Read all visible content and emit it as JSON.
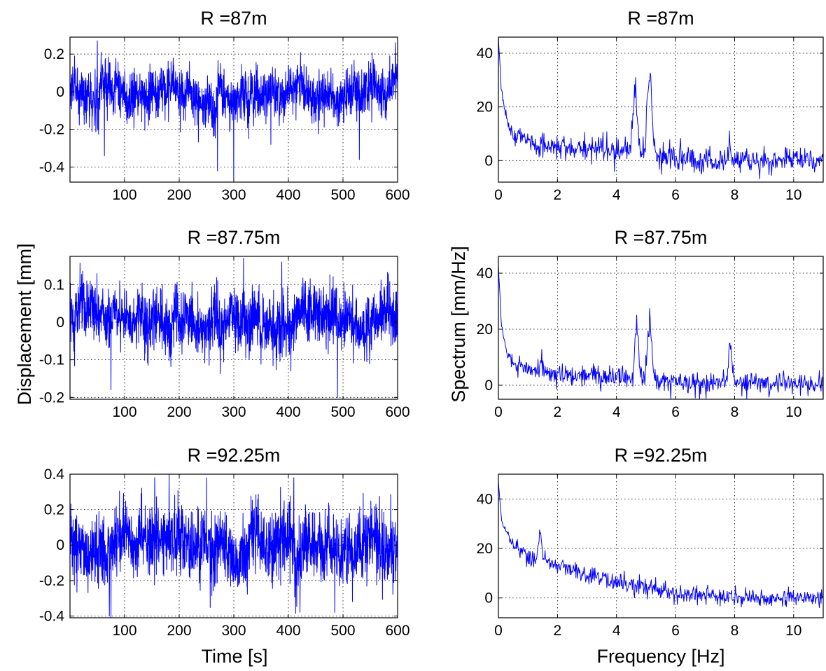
{
  "figure": {
    "ylabel_left": "Displacement [mm]",
    "ylabel_right": "Spectrum [mm/Hz]",
    "xlabel_left": "Time [s]",
    "xlabel_right": "Frequency [Hz]",
    "line_color": "#0000ff"
  },
  "chart_data": [
    {
      "id": "time-1",
      "type": "line",
      "title": "R =87m",
      "xlim": [
        0,
        600
      ],
      "ylim": [
        -0.48,
        0.29
      ],
      "xticks": [
        100,
        200,
        300,
        400,
        500,
        600
      ],
      "yticks": [
        0.2,
        0,
        -0.2,
        -0.4
      ],
      "ytick_labels": [
        "0.2",
        "0",
        "-0.2",
        "-0.4"
      ],
      "series": [
        {
          "kind": "noise",
          "n": 1800,
          "scale": 0.065,
          "mean": 0.0,
          "spikes": [
            [
              63,
              -0.34
            ],
            [
              270,
              -0.42
            ],
            [
              300,
              -0.47
            ],
            [
              368,
              -0.28
            ],
            [
              530,
              -0.36
            ],
            [
              50,
              0.27
            ],
            [
              596,
              0.26
            ]
          ]
        }
      ]
    },
    {
      "id": "spec-1",
      "type": "line",
      "title": "R =87m",
      "xlim": [
        0,
        11
      ],
      "ylim": [
        -8,
        46
      ],
      "xticks": [
        0,
        2,
        4,
        6,
        8,
        10
      ],
      "yticks": [
        40,
        20,
        0
      ],
      "ytick_labels": [
        "40",
        "20",
        "0"
      ],
      "series": [
        {
          "kind": "spectrum",
          "n": 600,
          "envelope": [
            [
              0.0,
              46
            ],
            [
              0.1,
              26
            ],
            [
              0.3,
              14
            ],
            [
              0.6,
              9
            ],
            [
              1.0,
              7
            ],
            [
              2.0,
              5
            ],
            [
              3.0,
              5
            ],
            [
              4.0,
              4
            ],
            [
              5.0,
              3
            ],
            [
              6.0,
              1
            ],
            [
              8.0,
              0
            ],
            [
              11.0,
              0
            ]
          ],
          "peaks": [
            [
              4.62,
              25,
              0.07
            ],
            [
              5.12,
              29,
              0.08
            ],
            [
              7.85,
              2,
              0.05
            ]
          ],
          "noise": 2.5
        }
      ]
    },
    {
      "id": "time-2",
      "type": "line",
      "title": "R =87.75m",
      "xlim": [
        0,
        600
      ],
      "ylim": [
        -0.205,
        0.175
      ],
      "xticks": [
        100,
        200,
        300,
        400,
        500,
        600
      ],
      "yticks": [
        0.1,
        0,
        -0.1,
        -0.2
      ],
      "ytick_labels": [
        "0.1",
        "0",
        "-0.1",
        "-0.2"
      ],
      "series": [
        {
          "kind": "noise",
          "n": 1800,
          "scale": 0.04,
          "mean": 0.0,
          "spikes": [
            [
              75,
              -0.18
            ],
            [
              490,
              -0.2
            ],
            [
              318,
              0.17
            ],
            [
              388,
              0.16
            ]
          ]
        }
      ]
    },
    {
      "id": "spec-2",
      "type": "line",
      "title": "R =87.75m",
      "xlim": [
        0,
        11
      ],
      "ylim": [
        -5,
        46
      ],
      "xticks": [
        0,
        2,
        4,
        6,
        8,
        10
      ],
      "yticks": [
        40,
        20,
        0
      ],
      "ytick_labels": [
        "40",
        "20",
        "0"
      ],
      "series": [
        {
          "kind": "spectrum",
          "n": 600,
          "envelope": [
            [
              0.0,
              43
            ],
            [
              0.1,
              22
            ],
            [
              0.3,
              11
            ],
            [
              0.6,
              7
            ],
            [
              1.0,
              6
            ],
            [
              2.0,
              4
            ],
            [
              3.0,
              3
            ],
            [
              4.0,
              3
            ],
            [
              5.0,
              2
            ],
            [
              6.0,
              1
            ],
            [
              8.0,
              1
            ],
            [
              11.0,
              0
            ]
          ],
          "peaks": [
            [
              4.68,
              19,
              0.06
            ],
            [
              5.12,
              22,
              0.07
            ],
            [
              7.85,
              14,
              0.06
            ],
            [
              1.45,
              3,
              0.06
            ]
          ],
          "noise": 2.0
        }
      ]
    },
    {
      "id": "time-3",
      "type": "line",
      "title": "R =92.25m",
      "xlim": [
        0,
        600
      ],
      "ylim": [
        -0.41,
        0.4
      ],
      "xticks": [
        100,
        200,
        300,
        400,
        500,
        600
      ],
      "yticks": [
        0.4,
        0.2,
        0,
        -0.2,
        -0.4
      ],
      "ytick_labels": [
        "0.4",
        "0.2",
        "0",
        "-0.2",
        "-0.4"
      ],
      "series": [
        {
          "kind": "noise",
          "n": 1800,
          "scale": 0.1,
          "mean": 0.0,
          "spikes": [
            [
              72,
              -0.4
            ],
            [
              485,
              -0.38
            ],
            [
              155,
              0.38
            ],
            [
              250,
              0.38
            ],
            [
              410,
              0.38
            ],
            [
              600,
              0.3
            ]
          ]
        }
      ]
    },
    {
      "id": "spec-3",
      "type": "line",
      "title": "R =92.25m",
      "xlim": [
        0,
        11
      ],
      "ylim": [
        -8,
        50
      ],
      "xticks": [
        0,
        2,
        4,
        6,
        8,
        10
      ],
      "yticks": [
        40,
        20,
        0
      ],
      "ytick_labels": [
        "40",
        "20",
        "0"
      ],
      "series": [
        {
          "kind": "spectrum",
          "n": 600,
          "envelope": [
            [
              0.0,
              47
            ],
            [
              0.1,
              32
            ],
            [
              0.3,
              25
            ],
            [
              0.6,
              20
            ],
            [
              1.0,
              17
            ],
            [
              2.0,
              13
            ],
            [
              3.0,
              9
            ],
            [
              4.0,
              6
            ],
            [
              5.0,
              4
            ],
            [
              6.0,
              2
            ],
            [
              8.0,
              0
            ],
            [
              11.0,
              0
            ]
          ],
          "peaks": [
            [
              1.42,
              10,
              0.06
            ]
          ],
          "noise": 1.8
        }
      ]
    }
  ]
}
